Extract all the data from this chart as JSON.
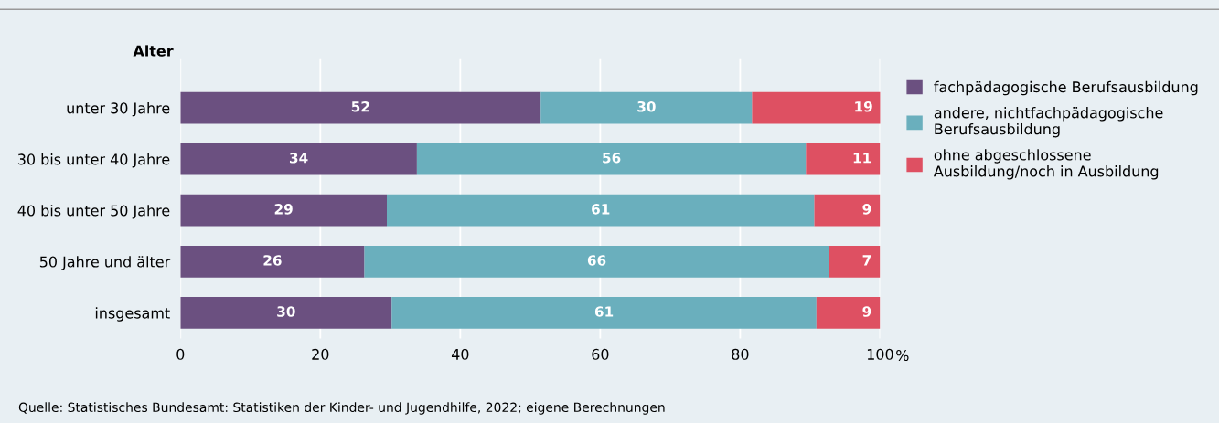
{
  "chart_data": {
    "type": "bar",
    "orientation": "horizontal",
    "stacked": true,
    "ylabel": "Alter",
    "xlabel": "%",
    "categories": [
      "unter 30 Jahre",
      "30 bis unter 40 Jahre",
      "40 bis unter 50 Jahre",
      "50 Jahre und älter",
      "insgesamt"
    ],
    "series": [
      {
        "name": "fachpädagogische Berufsausbildung",
        "color": "#6b5080",
        "values": [
          51.5,
          33.8,
          29.5,
          26.3,
          30.2
        ],
        "value_labels": [
          "52",
          "34",
          "29",
          "26",
          "30"
        ]
      },
      {
        "name": "andere, nichtfachpädagogische\nBerufsausbildung",
        "color": "#6aafbd",
        "values": [
          30.2,
          55.6,
          61.1,
          66.4,
          60.7
        ],
        "value_labels": [
          "30",
          "56",
          "61",
          "66",
          "61"
        ]
      },
      {
        "name": "ohne abgeschlossene\nAusbildung/noch in Ausbildung",
        "color": "#de5062",
        "values": [
          18.5,
          10.6,
          9.4,
          7.3,
          9.1
        ],
        "value_labels": [
          "19",
          "11",
          "9",
          "7",
          "9"
        ]
      }
    ],
    "xlim": [
      0,
      100
    ],
    "xticks": [
      0,
      20,
      40,
      60,
      80,
      100
    ],
    "grid": "x",
    "legend": "right",
    "annotations": [
      "Quelle: Statistisches Bundesamt: Statistiken der Kinder- und Jugendhilfe, 2022; eigene Berechnungen"
    ]
  }
}
